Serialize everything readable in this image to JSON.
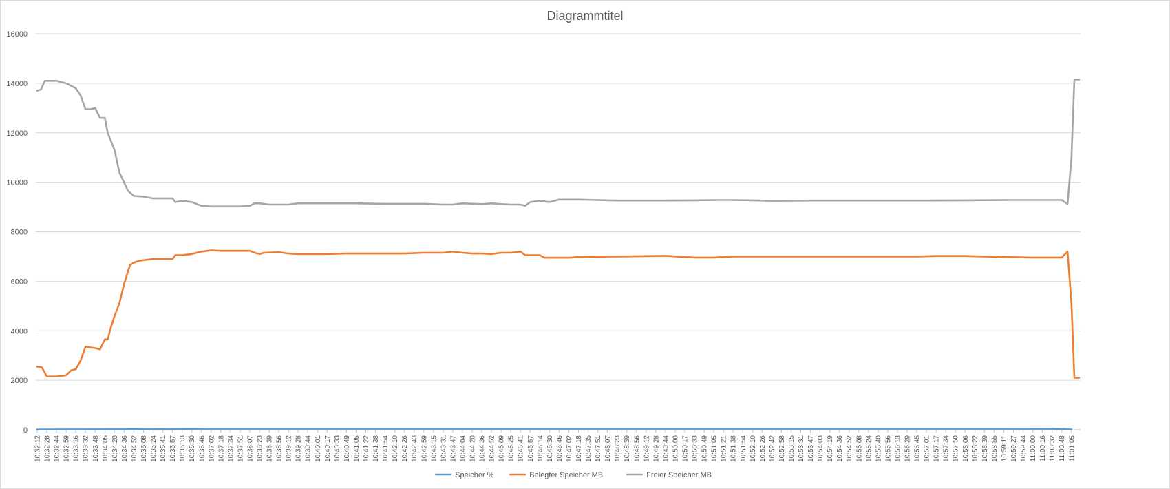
{
  "chart_data": {
    "type": "line",
    "title": "Diagrammtitel",
    "xlabel": "",
    "ylabel": "",
    "ylim": [
      0,
      16000
    ],
    "yticks": [
      0,
      2000,
      4000,
      6000,
      8000,
      10000,
      12000,
      14000,
      16000
    ],
    "grid": "horizontal",
    "legend_position": "bottom",
    "x_tick_labels": [
      "10:32:12",
      "10:32:28",
      "10:32:44",
      "10:32:59",
      "10:33:16",
      "10:33:32",
      "10:33:48",
      "10:34:05",
      "10:34:20",
      "10:34:36",
      "10:34:52",
      "10:35:08",
      "10:35:24",
      "10:35:41",
      "10:35:57",
      "10:36:13",
      "10:36:30",
      "10:36:46",
      "10:37:02",
      "10:37:18",
      "10:37:34",
      "10:37:51",
      "10:38:07",
      "10:38:23",
      "10:38:39",
      "10:38:56",
      "10:39:12",
      "10:39:28",
      "10:39:44",
      "10:40:01",
      "10:40:17",
      "10:40:33",
      "10:40:49",
      "10:41:05",
      "10:41:22",
      "10:41:38",
      "10:41:54",
      "10:42:10",
      "10:42:26",
      "10:42:43",
      "10:42:59",
      "10:43:15",
      "10:43:31",
      "10:43:47",
      "10:44:04",
      "10:44:20",
      "10:44:36",
      "10:44:52",
      "10:45:09",
      "10:45:25",
      "10:45:41",
      "10:45:57",
      "10:46:14",
      "10:46:30",
      "10:46:46",
      "10:47:02",
      "10:47:18",
      "10:47:35",
      "10:47:51",
      "10:48:07",
      "10:48:23",
      "10:48:39",
      "10:48:56",
      "10:49:12",
      "10:49:28",
      "10:49:44",
      "10:50:00",
      "10:50:17",
      "10:50:33",
      "10:50:49",
      "10:51:05",
      "10:51:21",
      "10:51:38",
      "10:51:54",
      "10:52:10",
      "10:52:26",
      "10:52:42",
      "10:52:58",
      "10:53:15",
      "10:53:31",
      "10:53:47",
      "10:54:03",
      "10:54:19",
      "10:54:36",
      "10:54:52",
      "10:55:08",
      "10:55:24",
      "10:55:40",
      "10:55:56",
      "10:56:13",
      "10:56:29",
      "10:56:45",
      "10:57:01",
      "10:57:17",
      "10:57:34",
      "10:57:50",
      "10:58:06",
      "10:58:22",
      "10:58:39",
      "10:58:55",
      "10:59:11",
      "10:59:27",
      "10:59:44",
      "11:00:00",
      "11:00:16",
      "11:00:32",
      "11:00:48",
      "11:01:05"
    ],
    "series": [
      {
        "name": "Speicher %",
        "color": "#5b9bd5",
        "points": [
          [
            0,
            15
          ],
          [
            10,
            20
          ],
          [
            18,
            45
          ],
          [
            100,
            45
          ],
          [
            105,
            40
          ],
          [
            107,
            15
          ]
        ]
      },
      {
        "name": "Belegter Speicher MB",
        "color": "#ed7d31",
        "points": [
          [
            0,
            2550
          ],
          [
            0.5,
            2520
          ],
          [
            1,
            2150
          ],
          [
            2,
            2150
          ],
          [
            3,
            2200
          ],
          [
            3.5,
            2400
          ],
          [
            4,
            2450
          ],
          [
            4.5,
            2800
          ],
          [
            5,
            3350
          ],
          [
            6,
            3300
          ],
          [
            6.5,
            3250
          ],
          [
            7,
            3650
          ],
          [
            7.3,
            3650
          ],
          [
            7.6,
            4100
          ],
          [
            8,
            4600
          ],
          [
            8.5,
            5100
          ],
          [
            9,
            5900
          ],
          [
            9.6,
            6650
          ],
          [
            10,
            6750
          ],
          [
            10.5,
            6820
          ],
          [
            11,
            6850
          ],
          [
            12,
            6900
          ],
          [
            14,
            6900
          ],
          [
            14.3,
            7050
          ],
          [
            15,
            7050
          ],
          [
            16,
            7100
          ],
          [
            16.5,
            7150
          ],
          [
            17,
            7200
          ],
          [
            18,
            7250
          ],
          [
            19,
            7230
          ],
          [
            21,
            7230
          ],
          [
            22,
            7230
          ],
          [
            22.5,
            7150
          ],
          [
            23,
            7100
          ],
          [
            23.5,
            7150
          ],
          [
            25,
            7180
          ],
          [
            26,
            7120
          ],
          [
            27,
            7100
          ],
          [
            28,
            7100
          ],
          [
            30,
            7100
          ],
          [
            32,
            7120
          ],
          [
            34,
            7120
          ],
          [
            36,
            7120
          ],
          [
            38,
            7120
          ],
          [
            40,
            7150
          ],
          [
            42,
            7150
          ],
          [
            43,
            7200
          ],
          [
            44,
            7150
          ],
          [
            45,
            7120
          ],
          [
            46,
            7120
          ],
          [
            47,
            7100
          ],
          [
            48,
            7150
          ],
          [
            49,
            7150
          ],
          [
            50,
            7200
          ],
          [
            50.5,
            7050
          ],
          [
            52,
            7050
          ],
          [
            52.5,
            6950
          ],
          [
            55,
            6950
          ],
          [
            56,
            6980
          ],
          [
            60,
            7000
          ],
          [
            65,
            7030
          ],
          [
            68,
            6960
          ],
          [
            70,
            6960
          ],
          [
            72,
            7000
          ],
          [
            74,
            7000
          ],
          [
            76,
            7000
          ],
          [
            78,
            7000
          ],
          [
            80,
            7000
          ],
          [
            84,
            7000
          ],
          [
            88,
            7000
          ],
          [
            91,
            7000
          ],
          [
            93,
            7020
          ],
          [
            96,
            7020
          ],
          [
            98,
            7000
          ],
          [
            100,
            6980
          ],
          [
            103,
            6960
          ],
          [
            105,
            6960
          ],
          [
            106,
            6960
          ],
          [
            106.6,
            7200
          ],
          [
            107,
            5100
          ],
          [
            107.3,
            2100
          ],
          [
            107.8,
            2100
          ]
        ]
      },
      {
        "name": "Freier Speicher MB",
        "color": "#a5a5a5",
        "points": [
          [
            0,
            13700
          ],
          [
            0.4,
            13750
          ],
          [
            0.8,
            14100
          ],
          [
            1.5,
            14100
          ],
          [
            2,
            14100
          ],
          [
            2.5,
            14050
          ],
          [
            3,
            14000
          ],
          [
            3.5,
            13900
          ],
          [
            4,
            13800
          ],
          [
            4.5,
            13500
          ],
          [
            5,
            12950
          ],
          [
            5.5,
            12950
          ],
          [
            6,
            13000
          ],
          [
            6.5,
            12600
          ],
          [
            7,
            12600
          ],
          [
            7.3,
            12000
          ],
          [
            8,
            11300
          ],
          [
            8.5,
            10400
          ],
          [
            9.4,
            9650
          ],
          [
            10,
            9450
          ],
          [
            11,
            9420
          ],
          [
            12,
            9350
          ],
          [
            14,
            9350
          ],
          [
            14.3,
            9200
          ],
          [
            15,
            9250
          ],
          [
            16,
            9200
          ],
          [
            17,
            9050
          ],
          [
            18,
            9020
          ],
          [
            20,
            9020
          ],
          [
            21,
            9020
          ],
          [
            22,
            9050
          ],
          [
            22.5,
            9150
          ],
          [
            23,
            9150
          ],
          [
            24,
            9100
          ],
          [
            26,
            9100
          ],
          [
            27,
            9150
          ],
          [
            30,
            9150
          ],
          [
            33,
            9150
          ],
          [
            36,
            9130
          ],
          [
            38,
            9130
          ],
          [
            40,
            9130
          ],
          [
            42,
            9100
          ],
          [
            43,
            9100
          ],
          [
            44,
            9150
          ],
          [
            46,
            9120
          ],
          [
            47,
            9150
          ],
          [
            48,
            9120
          ],
          [
            49,
            9100
          ],
          [
            50,
            9100
          ],
          [
            50.5,
            9050
          ],
          [
            51,
            9200
          ],
          [
            52,
            9250
          ],
          [
            53,
            9200
          ],
          [
            54,
            9300
          ],
          [
            56,
            9300
          ],
          [
            58,
            9280
          ],
          [
            60,
            9260
          ],
          [
            62,
            9260
          ],
          [
            65,
            9260
          ],
          [
            68,
            9270
          ],
          [
            70,
            9280
          ],
          [
            72,
            9280
          ],
          [
            74,
            9270
          ],
          [
            76,
            9250
          ],
          [
            80,
            9260
          ],
          [
            84,
            9260
          ],
          [
            88,
            9260
          ],
          [
            92,
            9260
          ],
          [
            96,
            9270
          ],
          [
            100,
            9280
          ],
          [
            103,
            9280
          ],
          [
            105,
            9280
          ],
          [
            106,
            9280
          ],
          [
            106.6,
            9120
          ],
          [
            107,
            11000
          ],
          [
            107.3,
            14150
          ],
          [
            107.8,
            14150
          ]
        ]
      }
    ]
  }
}
